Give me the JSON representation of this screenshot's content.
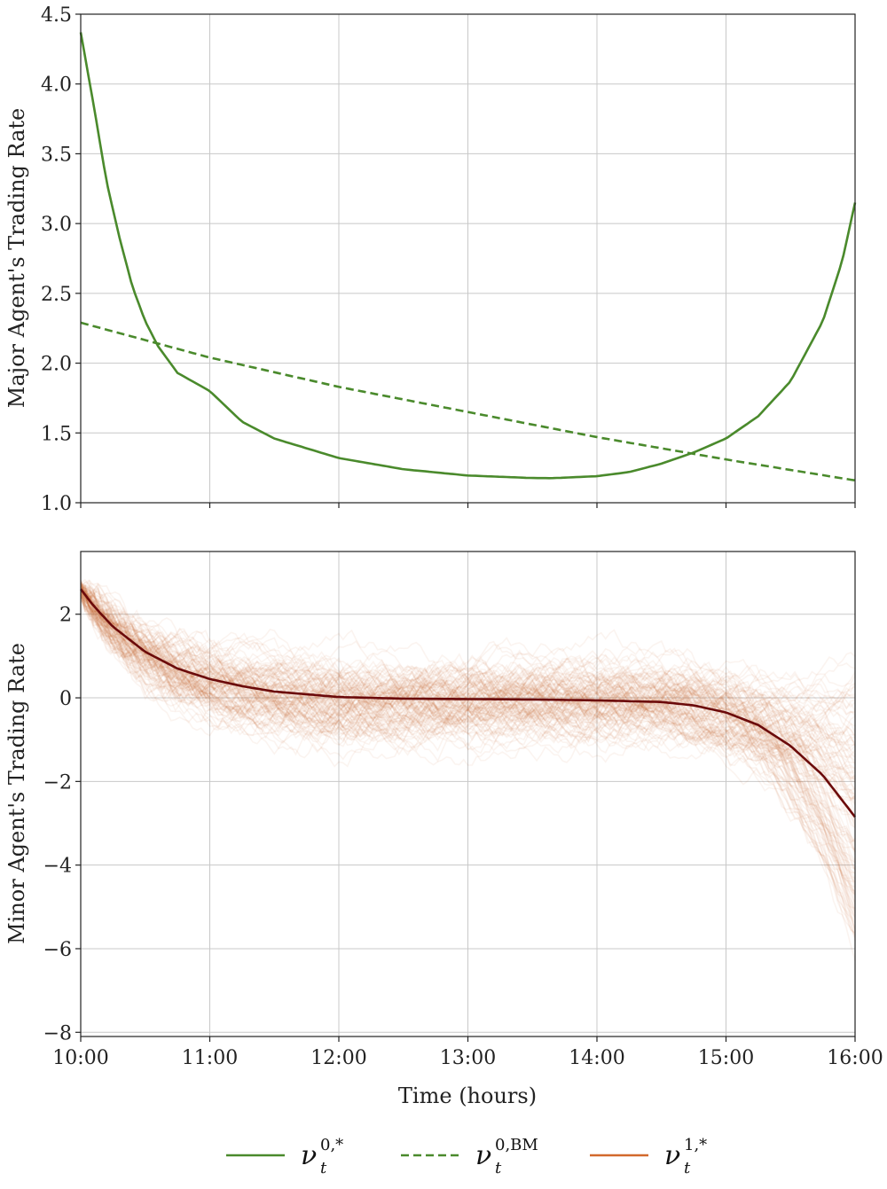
{
  "chart_data": [
    {
      "type": "line",
      "panel": "top",
      "ylabel": "Major Agent's Trading Rate",
      "xlabel": "",
      "xlim": [
        10,
        16
      ],
      "ylim": [
        1.0,
        4.5
      ],
      "xticks": [
        10,
        11,
        12,
        13,
        14,
        15,
        16
      ],
      "yticks": [
        1.0,
        1.5,
        2.0,
        2.5,
        3.0,
        3.5,
        4.0,
        4.5
      ],
      "ytick_labels": [
        "1.0",
        "1.5",
        "2.0",
        "2.5",
        "3.0",
        "3.5",
        "4.0",
        "4.5"
      ],
      "grid": true,
      "series": [
        {
          "name": "ν_t^{0,*}",
          "style": "solid",
          "color": "#4a8a2c",
          "x": [
            10.0,
            10.1,
            10.2,
            10.3,
            10.4,
            10.5,
            10.6,
            10.75,
            11.0,
            11.25,
            11.5,
            12.0,
            12.5,
            13.0,
            13.5,
            13.65,
            14.0,
            14.25,
            14.5,
            14.75,
            15.0,
            15.25,
            15.5,
            15.75,
            15.9,
            16.0
          ],
          "y": [
            4.37,
            3.85,
            3.3,
            2.9,
            2.55,
            2.3,
            2.12,
            1.93,
            1.8,
            1.58,
            1.46,
            1.32,
            1.24,
            1.195,
            1.177,
            1.176,
            1.19,
            1.22,
            1.28,
            1.36,
            1.46,
            1.62,
            1.87,
            2.3,
            2.73,
            3.15
          ]
        },
        {
          "name": "ν_t^{0,BM}",
          "style": "dashed",
          "color": "#4a8a2c",
          "x": [
            10.0,
            11.0,
            12.0,
            13.0,
            14.0,
            15.0,
            16.0
          ],
          "y": [
            2.29,
            2.04,
            1.83,
            1.65,
            1.47,
            1.31,
            1.16
          ]
        }
      ]
    },
    {
      "type": "line",
      "panel": "bottom",
      "ylabel": "Minor Agent's Trading Rate",
      "xlabel": "Time (hours)",
      "xlim": [
        10,
        16
      ],
      "ylim": [
        -8.1,
        3.5
      ],
      "xticks": [
        10,
        11,
        12,
        13,
        14,
        15,
        16
      ],
      "xtick_labels": [
        "10:00",
        "11:00",
        "12:00",
        "13:00",
        "14:00",
        "15:00",
        "16:00"
      ],
      "yticks": [
        2,
        0,
        -2,
        -4,
        -6,
        -8
      ],
      "ytick_labels": [
        "2",
        "0",
        "−2",
        "−4",
        "−6",
        "−8"
      ],
      "grid": true,
      "series": [
        {
          "name": "ν_t^{1,*}",
          "style": "solid",
          "color": "#6b0a0a",
          "x": [
            10.0,
            10.1,
            10.25,
            10.5,
            10.75,
            11.0,
            11.25,
            11.5,
            12.0,
            12.5,
            13.0,
            13.5,
            14.0,
            14.5,
            14.75,
            15.0,
            15.25,
            15.5,
            15.75,
            16.0
          ],
          "y": [
            2.6,
            2.2,
            1.7,
            1.1,
            0.7,
            0.45,
            0.28,
            0.15,
            0.02,
            -0.02,
            -0.03,
            -0.04,
            -0.06,
            -0.1,
            -0.18,
            -0.35,
            -0.65,
            -1.15,
            -1.85,
            -2.85
          ]
        }
      ],
      "band": {
        "name": "simulated paths",
        "color": "#c8622a",
        "path_count": 120,
        "terminal_range": [
          -6.0,
          0.5
        ]
      }
    }
  ],
  "legend": {
    "placement": "bottom-center",
    "entries": [
      {
        "label": "ν",
        "sub": "t",
        "sup": "0,*",
        "style": "solid",
        "color": "#4a8a2c"
      },
      {
        "label": "ν",
        "sub": "t",
        "sup": "0,BM",
        "style": "dashed",
        "color": "#4a8a2c"
      },
      {
        "label": "ν",
        "sub": "t",
        "sup": "1,*",
        "style": "solid",
        "color": "#d2692c"
      }
    ]
  }
}
